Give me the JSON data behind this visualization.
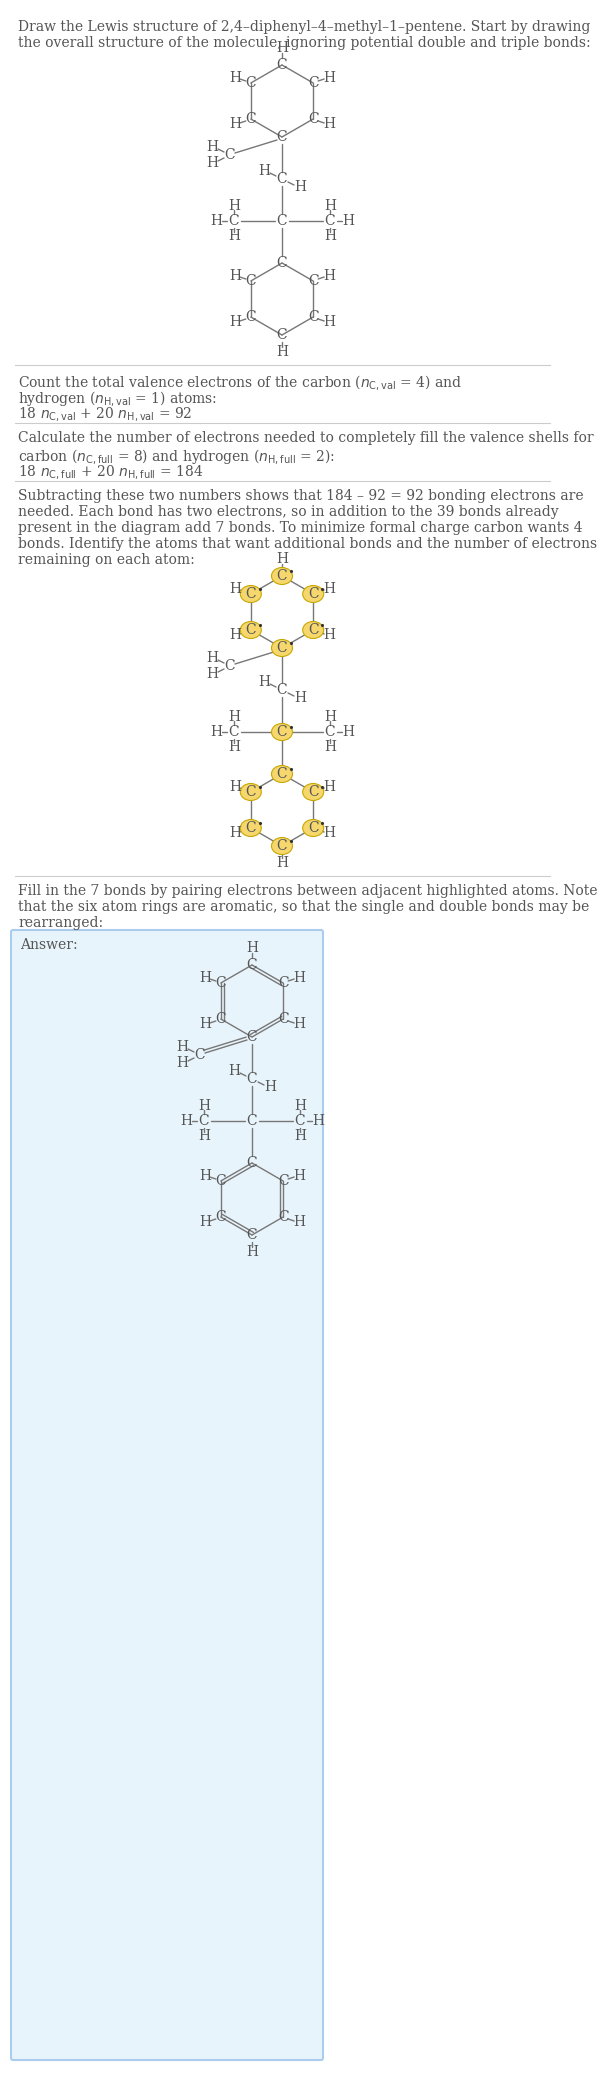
{
  "bg_color": "#ffffff",
  "text_color": "#555555",
  "atom_color": "#555555",
  "bond_color": "#777777",
  "highlight_color": "#f5d76e",
  "highlight_border": "#c8a800",
  "answer_bg": "#e8f4fb",
  "answer_border": "#aaccee",
  "title1": "Draw the Lewis structure of 2,4–diphenyl–4–methyl–1–pentene. Start by drawing",
  "title2": "the overall structure of the molecule, ignoring potential double and triple bonds:",
  "s2_l1": "Count the total valence electrons of the carbon (",
  "s3_l1": "Calculate the number of electrons needed to completely fill the valence shells for",
  "s3_l2": "carbon (",
  "s4_l1": "Subtracting these two numbers shows that 184 – 92 = 92 bonding electrons are",
  "s4_l2": "needed. Each bond has two electrons, so in addition to the 39 bonds already",
  "s4_l3": "present in the diagram add 7 bonds. To minimize formal charge carbon wants 4",
  "s4_l4": "bonds. Identify the atoms that want additional bonds and the number of electrons",
  "s4_l5": "remaining on each atom:",
  "s5_l1": "Fill in the 7 bonds by pairing electrons between adjacent highlighted atoms. Note",
  "s5_l2": "that the six atom rings are aromatic, so that the single and double bonds may be",
  "s5_l3": "rearranged:",
  "answer_label": "Answer:"
}
